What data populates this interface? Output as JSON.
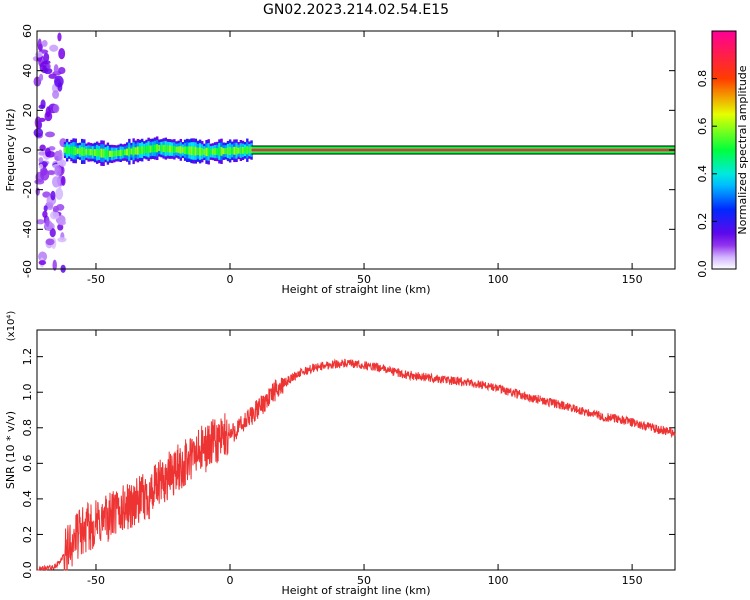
{
  "title": "GN02.2023.214.02.54.E15",
  "colors": {
    "snr_line": "#ee3333",
    "frame": "#000000",
    "band_line": "#000000"
  },
  "chart_data": [
    {
      "type": "heatmap",
      "xlabel": "Height of straight line (km)",
      "ylabel": "Frequency (Hz)",
      "xlim": [
        -72,
        166
      ],
      "ylim": [
        -60,
        60
      ],
      "xticks": [
        -50,
        0,
        50,
        100,
        150
      ],
      "yticks": [
        -60,
        -40,
        -20,
        0,
        20,
        40,
        60
      ],
      "colorbar": {
        "label": "Normalized spectral amplitude",
        "range": [
          0.0,
          1.0
        ],
        "ticks": [
          0.0,
          0.2,
          0.4,
          0.6,
          0.8
        ],
        "colormap": "rainbow (white-violet-blue-cyan-green-yellow-red-magenta)"
      },
      "features": [
        {
          "name": "broadband noise",
          "x_range": [
            -72,
            -62
          ],
          "freq_range": [
            -60,
            60
          ],
          "amplitude": 0.1
        },
        {
          "name": "carrier streak",
          "x_range": [
            -62,
            8
          ],
          "freq_center": [
            0,
            -2,
            1,
            -1,
            0
          ],
          "freq_halfwidth": 5,
          "amplitude": 0.5
        },
        {
          "name": "carrier line",
          "x_range": [
            8,
            166
          ],
          "freq": 0,
          "freq_halfwidth": 2,
          "amplitude": 0.9
        }
      ]
    },
    {
      "type": "line",
      "xlabel": "Height of straight line (km)",
      "ylabel": "SNR (10 * v/v)",
      "yscale_note": "(x10⁴)",
      "xlim": [
        -72,
        166
      ],
      "ylim": [
        0.0,
        1.35
      ],
      "xticks": [
        -50,
        0,
        50,
        100,
        150
      ],
      "yticks": [
        0.0,
        0.2,
        0.4,
        0.6,
        0.8,
        1.0,
        1.2
      ],
      "series": [
        {
          "x": [
            -72,
            -65,
            -62,
            -58,
            -55,
            -50,
            -45,
            -40,
            -35,
            -30,
            -25,
            -20,
            -15,
            -10,
            -5,
            0,
            5,
            10,
            15,
            20,
            25,
            30,
            35,
            40,
            45,
            50,
            55,
            60,
            65,
            70,
            75,
            80,
            85,
            90,
            95,
            100,
            105,
            110,
            115,
            120,
            125,
            130,
            135,
            140,
            145,
            150,
            155,
            160,
            166
          ],
          "values": [
            0.0,
            0.02,
            0.08,
            0.18,
            0.22,
            0.26,
            0.3,
            0.34,
            0.38,
            0.42,
            0.5,
            0.56,
            0.62,
            0.68,
            0.72,
            0.76,
            0.82,
            0.9,
            0.98,
            1.05,
            1.1,
            1.13,
            1.15,
            1.16,
            1.16,
            1.15,
            1.14,
            1.12,
            1.1,
            1.09,
            1.08,
            1.07,
            1.06,
            1.05,
            1.04,
            1.02,
            1.0,
            0.98,
            0.96,
            0.94,
            0.92,
            0.9,
            0.88,
            0.86,
            0.85,
            0.83,
            0.81,
            0.79,
            0.77
          ]
        }
      ]
    }
  ]
}
